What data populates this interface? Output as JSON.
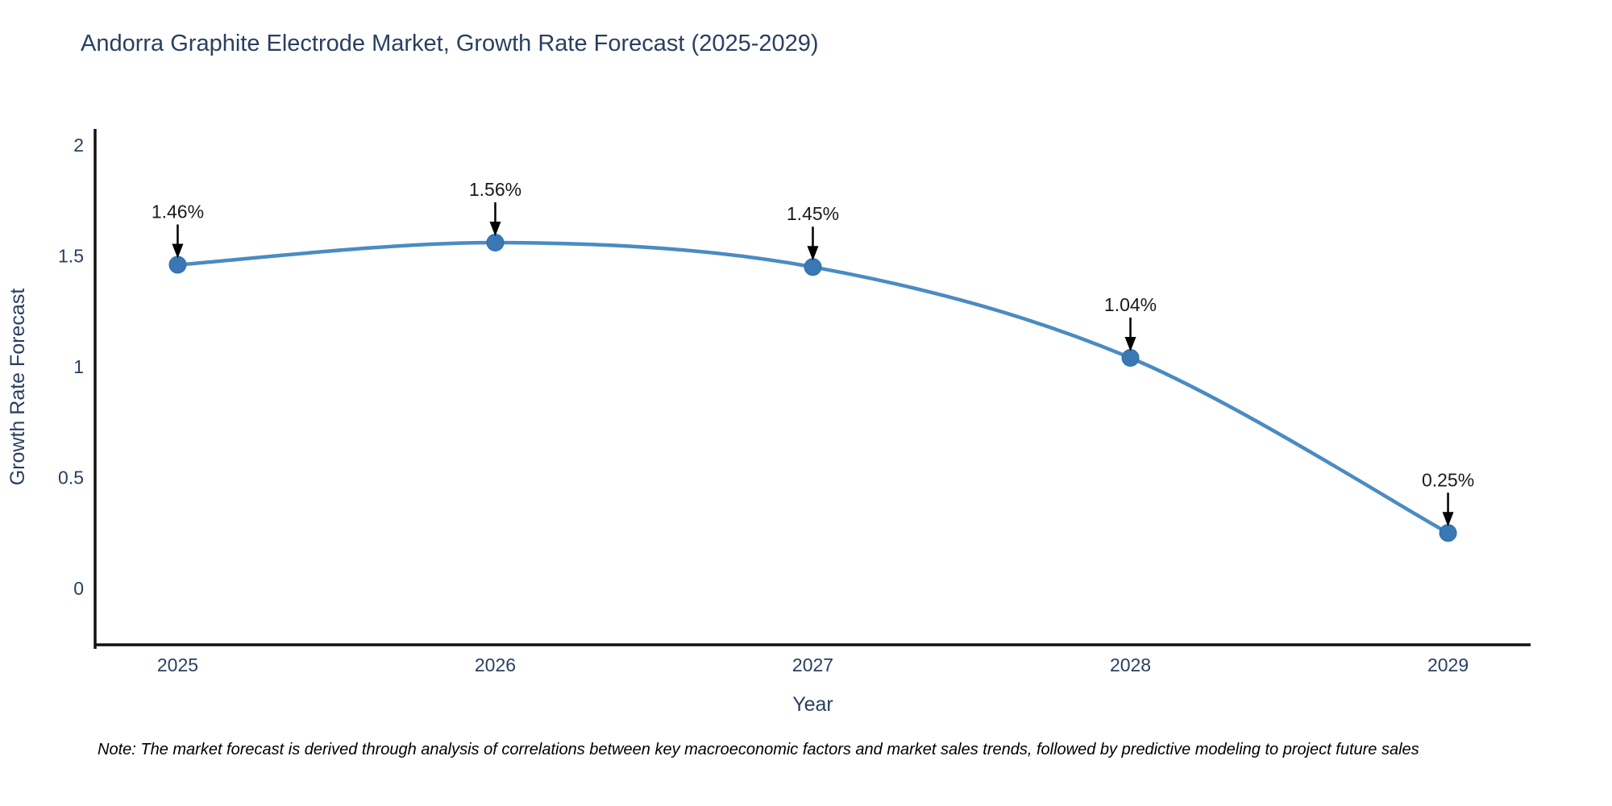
{
  "title": "Andorra Graphite Electrode Market, Growth Rate Forecast (2025-2029)",
  "note": "Note: The market forecast is derived through analysis of correlations between key macroeconomic factors and market sales trends, followed by predictive modeling to project future sales",
  "chart_data": {
    "type": "line",
    "line_shape": "spline",
    "title": "Andorra Graphite Electrode Market, Growth Rate Forecast (2025-2029)",
    "xlabel": "Year",
    "ylabel": "Growth Rate Forecast",
    "x": [
      2025,
      2026,
      2027,
      2028,
      2029
    ],
    "values": [
      1.46,
      1.56,
      1.45,
      1.04,
      0.25
    ],
    "point_labels": [
      "1.46%",
      "1.56%",
      "1.45%",
      "1.04%",
      "0.25%"
    ],
    "xtick_labels": [
      "2025",
      "2026",
      "2027",
      "2028",
      "2029"
    ],
    "ytick_values": [
      0,
      0.5,
      1,
      1.5,
      2
    ],
    "ytick_labels": [
      "0",
      "0.5",
      "1",
      "1.5",
      "2"
    ],
    "xlim": [
      2024.74,
      2029.26
    ],
    "ylim": [
      -0.2545,
      2.0727
    ],
    "grid": false,
    "legend": "none",
    "colors": {
      "line": "#4a8bc2",
      "marker": "#3a77b5",
      "marker_edge": "#2f6da8",
      "axis_line": "#111111",
      "tick_text": "#2a3f5f",
      "axis_title_text": "#2a3f5f",
      "annotation_text": "#1a1a1a",
      "arrow": "#000000",
      "background": "#ffffff"
    }
  }
}
